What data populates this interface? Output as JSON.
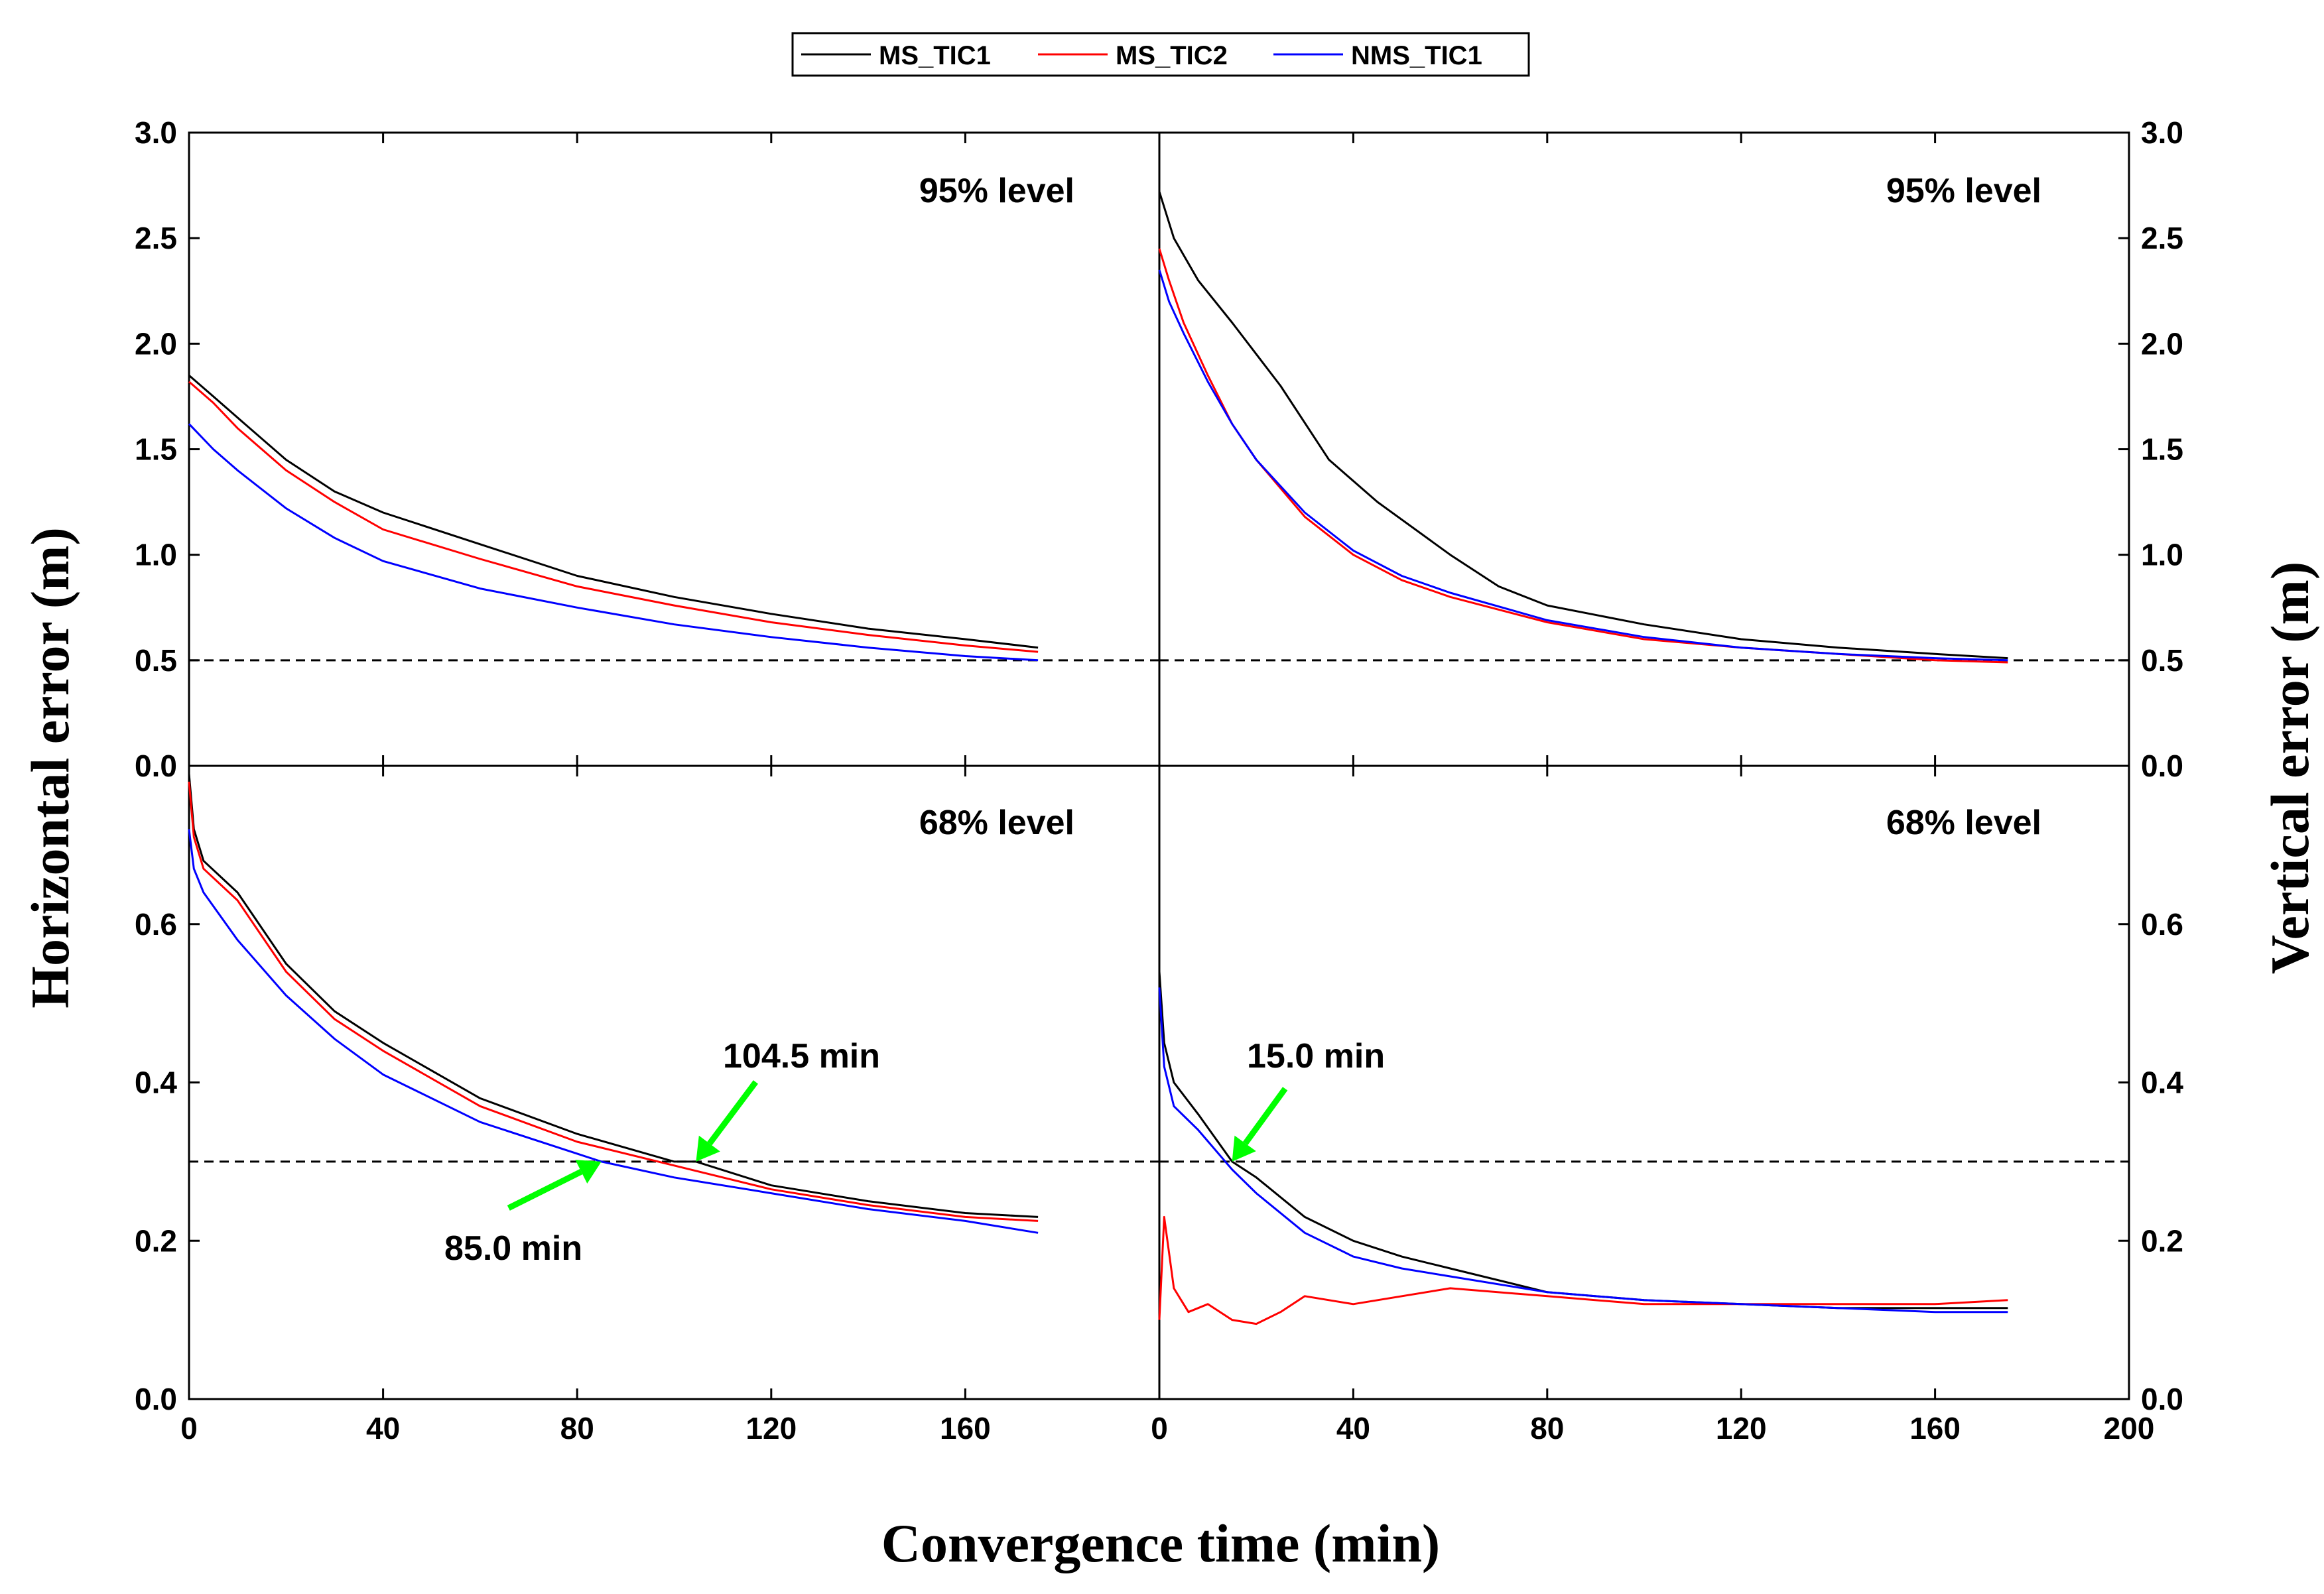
{
  "chart_data": {
    "type": "line",
    "xlabel": "Convergence time (min)",
    "ylabel_left": "Horizontal error (m)",
    "ylabel_right": "Vertical error (m)",
    "xlim": [
      0,
      200
    ],
    "x_ticks": [
      "0",
      "40",
      "80",
      "120",
      "160",
      "200"
    ],
    "series_names": [
      "MS_TIC1",
      "MS_TIC2",
      "NMS_TIC1"
    ],
    "series_colors": [
      "#000000",
      "#ff0000",
      "#0000ff"
    ],
    "panels": [
      {
        "id": "horizontal-95",
        "label": "95%  level",
        "ylim": [
          0,
          3.0
        ],
        "y_ticks": [
          "0.0",
          "0.5",
          "1.0",
          "1.5",
          "2.0",
          "2.5",
          "3.0"
        ],
        "threshold": 0.5,
        "series": [
          {
            "name": "MS_TIC1",
            "points": [
              [
                0,
                1.85
              ],
              [
                5,
                1.75
              ],
              [
                10,
                1.65
              ],
              [
                20,
                1.45
              ],
              [
                30,
                1.3
              ],
              [
                40,
                1.2
              ],
              [
                60,
                1.05
              ],
              [
                80,
                0.9
              ],
              [
                100,
                0.8
              ],
              [
                120,
                0.72
              ],
              [
                140,
                0.65
              ],
              [
                160,
                0.6
              ],
              [
                175,
                0.56
              ]
            ]
          },
          {
            "name": "MS_TIC2",
            "points": [
              [
                0,
                1.82
              ],
              [
                5,
                1.72
              ],
              [
                10,
                1.6
              ],
              [
                20,
                1.4
              ],
              [
                30,
                1.25
              ],
              [
                40,
                1.12
              ],
              [
                60,
                0.98
              ],
              [
                80,
                0.85
              ],
              [
                100,
                0.76
              ],
              [
                120,
                0.68
              ],
              [
                140,
                0.62
              ],
              [
                160,
                0.57
              ],
              [
                175,
                0.54
              ]
            ]
          },
          {
            "name": "NMS_TIC1",
            "points": [
              [
                0,
                1.62
              ],
              [
                5,
                1.5
              ],
              [
                10,
                1.4
              ],
              [
                20,
                1.22
              ],
              [
                30,
                1.08
              ],
              [
                40,
                0.97
              ],
              [
                60,
                0.84
              ],
              [
                80,
                0.75
              ],
              [
                100,
                0.67
              ],
              [
                120,
                0.61
              ],
              [
                140,
                0.56
              ],
              [
                160,
                0.52
              ],
              [
                175,
                0.5
              ]
            ]
          }
        ]
      },
      {
        "id": "vertical-95",
        "label": "95%  level",
        "ylim": [
          0,
          3.0
        ],
        "y_ticks": [
          "0.0",
          "0.5",
          "1.0",
          "1.5",
          "2.0",
          "2.5",
          "3.0"
        ],
        "threshold": 0.5,
        "series": [
          {
            "name": "MS_TIC1",
            "points": [
              [
                0,
                2.72
              ],
              [
                3,
                2.5
              ],
              [
                8,
                2.3
              ],
              [
                15,
                2.1
              ],
              [
                25,
                1.8
              ],
              [
                35,
                1.45
              ],
              [
                45,
                1.25
              ],
              [
                60,
                1.0
              ],
              [
                70,
                0.85
              ],
              [
                80,
                0.76
              ],
              [
                100,
                0.67
              ],
              [
                120,
                0.6
              ],
              [
                140,
                0.56
              ],
              [
                160,
                0.53
              ],
              [
                175,
                0.51
              ]
            ]
          },
          {
            "name": "MS_TIC2",
            "points": [
              [
                0,
                2.45
              ],
              [
                2,
                2.3
              ],
              [
                5,
                2.1
              ],
              [
                10,
                1.85
              ],
              [
                15,
                1.62
              ],
              [
                20,
                1.45
              ],
              [
                30,
                1.18
              ],
              [
                40,
                1.0
              ],
              [
                50,
                0.88
              ],
              [
                60,
                0.8
              ],
              [
                80,
                0.68
              ],
              [
                100,
                0.6
              ],
              [
                120,
                0.56
              ],
              [
                140,
                0.53
              ],
              [
                160,
                0.5
              ],
              [
                175,
                0.49
              ]
            ]
          },
          {
            "name": "NMS_TIC1",
            "points": [
              [
                0,
                2.35
              ],
              [
                2,
                2.2
              ],
              [
                5,
                2.05
              ],
              [
                10,
                1.82
              ],
              [
                15,
                1.62
              ],
              [
                20,
                1.45
              ],
              [
                30,
                1.2
              ],
              [
                40,
                1.02
              ],
              [
                50,
                0.9
              ],
              [
                60,
                0.82
              ],
              [
                80,
                0.69
              ],
              [
                100,
                0.61
              ],
              [
                120,
                0.56
              ],
              [
                140,
                0.53
              ],
              [
                160,
                0.51
              ],
              [
                175,
                0.5
              ]
            ]
          }
        ]
      },
      {
        "id": "horizontal-68",
        "label": "68%  level",
        "ylim": [
          0,
          0.8
        ],
        "y_ticks": [
          "0.0",
          "0.2",
          "0.4",
          "0.6"
        ],
        "threshold": 0.3,
        "series": [
          {
            "name": "MS_TIC1",
            "points": [
              [
                0,
                0.79
              ],
              [
                1,
                0.72
              ],
              [
                3,
                0.68
              ],
              [
                10,
                0.64
              ],
              [
                20,
                0.55
              ],
              [
                30,
                0.49
              ],
              [
                40,
                0.45
              ],
              [
                60,
                0.38
              ],
              [
                80,
                0.335
              ],
              [
                100,
                0.3
              ],
              [
                104.5,
                0.3
              ],
              [
                120,
                0.27
              ],
              [
                140,
                0.25
              ],
              [
                160,
                0.235
              ],
              [
                175,
                0.23
              ]
            ]
          },
          {
            "name": "MS_TIC2",
            "points": [
              [
                0,
                0.78
              ],
              [
                1,
                0.71
              ],
              [
                3,
                0.67
              ],
              [
                10,
                0.63
              ],
              [
                20,
                0.54
              ],
              [
                30,
                0.48
              ],
              [
                40,
                0.44
              ],
              [
                60,
                0.37
              ],
              [
                80,
                0.325
              ],
              [
                100,
                0.295
              ],
              [
                120,
                0.265
              ],
              [
                140,
                0.245
              ],
              [
                160,
                0.23
              ],
              [
                175,
                0.225
              ]
            ]
          },
          {
            "name": "NMS_TIC1",
            "points": [
              [
                0,
                0.72
              ],
              [
                1,
                0.67
              ],
              [
                3,
                0.64
              ],
              [
                10,
                0.58
              ],
              [
                20,
                0.51
              ],
              [
                30,
                0.455
              ],
              [
                40,
                0.41
              ],
              [
                60,
                0.35
              ],
              [
                80,
                0.31
              ],
              [
                85,
                0.3
              ],
              [
                100,
                0.28
              ],
              [
                120,
                0.26
              ],
              [
                140,
                0.24
              ],
              [
                160,
                0.225
              ],
              [
                175,
                0.21
              ]
            ]
          }
        ]
      },
      {
        "id": "vertical-68",
        "label": "68%  level",
        "ylim": [
          0,
          0.8
        ],
        "y_ticks": [
          "0.0",
          "0.2",
          "0.4",
          "0.6"
        ],
        "threshold": 0.3,
        "series": [
          {
            "name": "MS_TIC1",
            "points": [
              [
                0,
                0.54
              ],
              [
                1,
                0.45
              ],
              [
                3,
                0.4
              ],
              [
                8,
                0.36
              ],
              [
                15,
                0.3
              ],
              [
                20,
                0.28
              ],
              [
                30,
                0.23
              ],
              [
                40,
                0.2
              ],
              [
                50,
                0.18
              ],
              [
                60,
                0.165
              ],
              [
                80,
                0.135
              ],
              [
                100,
                0.125
              ],
              [
                120,
                0.12
              ],
              [
                140,
                0.115
              ],
              [
                160,
                0.115
              ],
              [
                175,
                0.115
              ]
            ]
          },
          {
            "name": "MS_TIC2",
            "points": [
              [
                0,
                0.1
              ],
              [
                1,
                0.23
              ],
              [
                3,
                0.14
              ],
              [
                6,
                0.11
              ],
              [
                10,
                0.12
              ],
              [
                15,
                0.1
              ],
              [
                20,
                0.095
              ],
              [
                25,
                0.11
              ],
              [
                30,
                0.13
              ],
              [
                40,
                0.12
              ],
              [
                60,
                0.14
              ],
              [
                80,
                0.13
              ],
              [
                100,
                0.12
              ],
              [
                120,
                0.12
              ],
              [
                140,
                0.12
              ],
              [
                160,
                0.12
              ],
              [
                175,
                0.125
              ]
            ]
          },
          {
            "name": "NMS_TIC1",
            "points": [
              [
                0,
                0.52
              ],
              [
                1,
                0.42
              ],
              [
                3,
                0.37
              ],
              [
                8,
                0.34
              ],
              [
                15,
                0.29
              ],
              [
                20,
                0.26
              ],
              [
                30,
                0.21
              ],
              [
                40,
                0.18
              ],
              [
                50,
                0.165
              ],
              [
                60,
                0.155
              ],
              [
                80,
                0.135
              ],
              [
                100,
                0.125
              ],
              [
                120,
                0.12
              ],
              [
                140,
                0.115
              ],
              [
                160,
                0.11
              ],
              [
                175,
                0.11
              ]
            ]
          }
        ]
      }
    ],
    "annotations": [
      {
        "panel": "horizontal-68",
        "text": "104.5  min",
        "x": 104.5,
        "y": 0.3
      },
      {
        "panel": "horizontal-68",
        "text": "85.0  min",
        "x": 85.0,
        "y": 0.3
      },
      {
        "panel": "vertical-68",
        "text": "15.0  min",
        "x": 15.0,
        "y": 0.3
      }
    ],
    "annotation_color": "#00ff00"
  }
}
